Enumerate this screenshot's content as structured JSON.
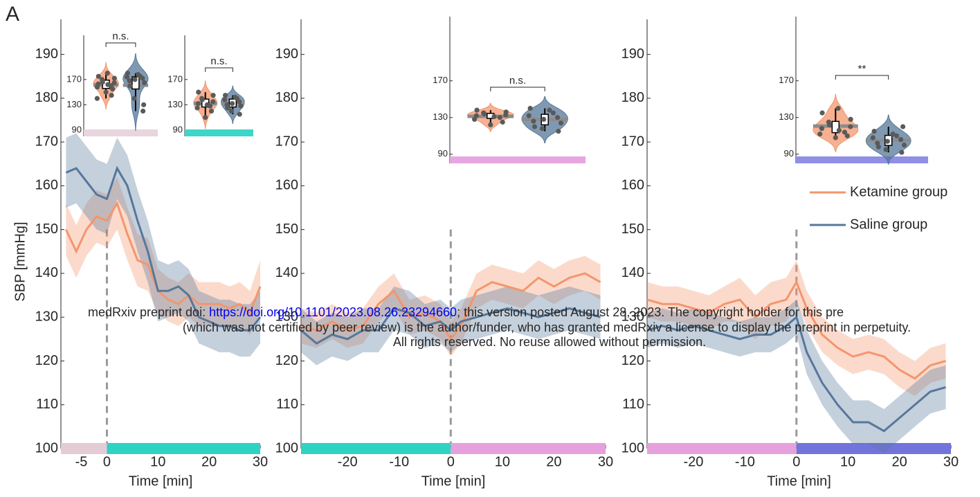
{
  "label": "A",
  "notice": {
    "line1_prefix": "medRxiv preprint doi: ",
    "line1_link": "https://doi.org/10.1101/2023.08.26.23294660",
    "line1_suffix": "; this version posted August 28, 2023. The copyright holder for this pre",
    "line2": "(which was not certified by peer review) is the author/funder, who has granted medRxiv a license to display the preprint in perpetuity.",
    "line3": "All rights reserved. No reuse allowed without permission."
  },
  "chart_data": [
    {
      "type": "line",
      "y_label": "SBP [mmHg]",
      "x_label": "Time [min]",
      "xlim": [
        -9,
        30
      ],
      "xticks": [
        -5,
        0,
        10,
        20,
        30
      ],
      "ylim": [
        100,
        198
      ],
      "yticks": [
        100,
        110,
        120,
        130,
        140,
        150,
        160,
        170,
        180,
        190
      ],
      "vline": 0,
      "x": [
        -8,
        -6,
        -4,
        -2,
        0,
        2,
        4,
        6,
        8,
        10,
        12,
        14,
        16,
        18,
        20,
        22,
        24,
        26,
        28,
        30
      ],
      "series": [
        {
          "color": "#f4956c",
          "values": [
            150,
            145,
            150,
            153,
            152,
            156,
            149,
            143,
            142,
            136,
            134,
            133,
            135,
            133,
            133,
            133,
            132,
            133,
            131,
            137
          ],
          "error": [
            6,
            6,
            6,
            6,
            6,
            6,
            6,
            6,
            6,
            5,
            5,
            5,
            5,
            5,
            5,
            5,
            5,
            5,
            5,
            6
          ]
        },
        {
          "color": "#56779a",
          "values": [
            163,
            164,
            161,
            158,
            157,
            164,
            160,
            152,
            145,
            136,
            136,
            137,
            135,
            130,
            129,
            128,
            128,
            127,
            127,
            130
          ],
          "error": [
            8,
            8,
            8,
            8,
            8,
            7,
            7,
            7,
            7,
            7,
            6,
            6,
            6,
            6,
            6,
            6,
            6,
            6,
            6,
            6
          ]
        }
      ],
      "phases": [
        {
          "start": -9,
          "end": 0,
          "color": "#e3ccd6"
        },
        {
          "start": 0,
          "end": 30,
          "color": "#2ed3c3"
        }
      ],
      "insets": [
        {
          "ylim": [
            80,
            240
          ],
          "yticks": [
            90,
            130,
            170
          ],
          "annotation": "n.s.",
          "color": "#e8d5dd",
          "groups": [
            {
              "color": "#f4956c",
              "values": [
                150,
                155,
                158,
                160,
                162,
                163,
                165,
                166,
                170,
                172,
                175,
                180,
                145,
                140
              ]
            },
            {
              "color": "#56779a",
              "values": [
                120,
                140,
                160,
                165,
                168,
                170,
                172,
                174,
                175,
                178,
                180,
                130
              ]
            }
          ]
        },
        {
          "ylim": [
            80,
            240
          ],
          "yticks": [
            90,
            130,
            170
          ],
          "annotation": "n.s.",
          "color": "#3dd6c8",
          "groups": [
            {
              "color": "#f4956c",
              "values": [
                110,
                120,
                125,
                128,
                130,
                132,
                135,
                138,
                140,
                145,
                150
              ]
            },
            {
              "color": "#56779a",
              "values": [
                115,
                120,
                125,
                128,
                130,
                132,
                135,
                138,
                140,
                142,
                145
              ]
            }
          ]
        }
      ]
    },
    {
      "type": "line",
      "x_label": "Time [min]",
      "xlim": [
        -29,
        30
      ],
      "xticks": [
        -20,
        -10,
        0,
        10,
        20,
        30
      ],
      "ylim": [
        100,
        198
      ],
      "yticks": [
        100,
        110,
        120,
        130,
        140,
        150,
        160,
        170,
        180,
        190
      ],
      "vline": 0,
      "x": [
        -29,
        -26,
        -23,
        -20,
        -17,
        -14,
        -11,
        -8,
        -5,
        -2,
        0,
        2,
        5,
        8,
        11,
        14,
        17,
        20,
        23,
        26,
        29
      ],
      "series": [
        {
          "color": "#f4956c",
          "values": [
            128,
            127,
            129,
            127,
            128,
            133,
            136,
            130,
            131,
            129,
            125,
            128,
            136,
            138,
            137,
            136,
            139,
            137,
            139,
            140,
            138
          ],
          "error": [
            4,
            4,
            4,
            4,
            4,
            4,
            4,
            4,
            4,
            4,
            4,
            4,
            4,
            4,
            4,
            4,
            4,
            4,
            4,
            4,
            4
          ]
        },
        {
          "color": "#56779a",
          "values": [
            127,
            124,
            126,
            125,
            127,
            127,
            132,
            131,
            128,
            129,
            127,
            129,
            130,
            131,
            132,
            131,
            130,
            131,
            132,
            131,
            130
          ],
          "error": [
            5,
            5,
            5,
            5,
            5,
            5,
            5,
            5,
            5,
            5,
            5,
            5,
            5,
            5,
            5,
            5,
            5,
            5,
            5,
            5,
            5
          ]
        }
      ],
      "phases": [
        {
          "start": -29,
          "end": 0,
          "color": "#2ed3c3"
        },
        {
          "start": 0,
          "end": 30,
          "color": "#e6a0dc"
        }
      ],
      "insets": [
        {
          "ylim": [
            80,
            240
          ],
          "yticks": [
            90,
            130,
            170
          ],
          "annotation": "n.s.",
          "color": "#e6a6e0",
          "groups": [
            {
              "color": "#f4956c",
              "values": [
                122,
                125,
                128,
                130,
                131,
                132,
                133,
                134,
                135,
                136,
                138
              ]
            },
            {
              "color": "#56779a",
              "values": [
                115,
                118,
                120,
                124,
                126,
                128,
                130,
                132,
                135,
                138,
                140
              ]
            }
          ]
        }
      ]
    },
    {
      "type": "line",
      "x_label": "Time [min]",
      "legend": "right",
      "xlim": [
        -29,
        30
      ],
      "xticks": [
        -20,
        -10,
        0,
        10,
        20,
        30
      ],
      "ylim": [
        100,
        198
      ],
      "yticks": [
        100,
        110,
        120,
        130,
        140,
        150,
        160,
        170,
        180,
        190
      ],
      "vline": 0,
      "x": [
        -29,
        -26,
        -23,
        -20,
        -17,
        -14,
        -11,
        -8,
        -5,
        -2,
        0,
        2,
        5,
        8,
        11,
        14,
        17,
        20,
        23,
        26,
        29
      ],
      "series": [
        {
          "name": "Ketamine group",
          "color": "#f4956c",
          "values": [
            134,
            133,
            133,
            132,
            131,
            133,
            134,
            130,
            133,
            134,
            138,
            132,
            126,
            123,
            121,
            122,
            121,
            118,
            116,
            119,
            120
          ],
          "error": [
            4,
            4,
            4,
            4,
            4,
            4,
            5,
            5,
            5,
            5,
            5,
            4,
            4,
            4,
            4,
            4,
            4,
            4,
            4,
            4,
            4
          ]
        },
        {
          "name": "Saline group",
          "color": "#56779a",
          "values": [
            127,
            128,
            127,
            128,
            127,
            126,
            125,
            126,
            126,
            128,
            130,
            122,
            115,
            110,
            106,
            106,
            104,
            107,
            110,
            113,
            114
          ],
          "error": [
            4,
            4,
            4,
            4,
            4,
            4,
            4,
            4,
            4,
            4,
            4,
            5,
            5,
            5,
            5,
            5,
            5,
            5,
            5,
            5,
            5
          ]
        }
      ],
      "phases": [
        {
          "start": -29,
          "end": 0,
          "color": "#e6a0dc"
        },
        {
          "start": 0,
          "end": 30,
          "color": "#7373dc"
        }
      ],
      "insets": [
        {
          "ylim": [
            80,
            240
          ],
          "yticks": [
            90,
            130,
            170
          ],
          "annotation": "**",
          "color": "#8f8fe6",
          "groups": [
            {
              "color": "#f4956c",
              "values": [
                108,
                110,
                112,
                114,
                116,
                118,
                120,
                122,
                125,
                128,
                135,
                140
              ]
            },
            {
              "color": "#56779a",
              "values": [
                92,
                95,
                98,
                100,
                102,
                104,
                106,
                108,
                110,
                112,
                115,
                120
              ]
            }
          ]
        }
      ]
    }
  ]
}
